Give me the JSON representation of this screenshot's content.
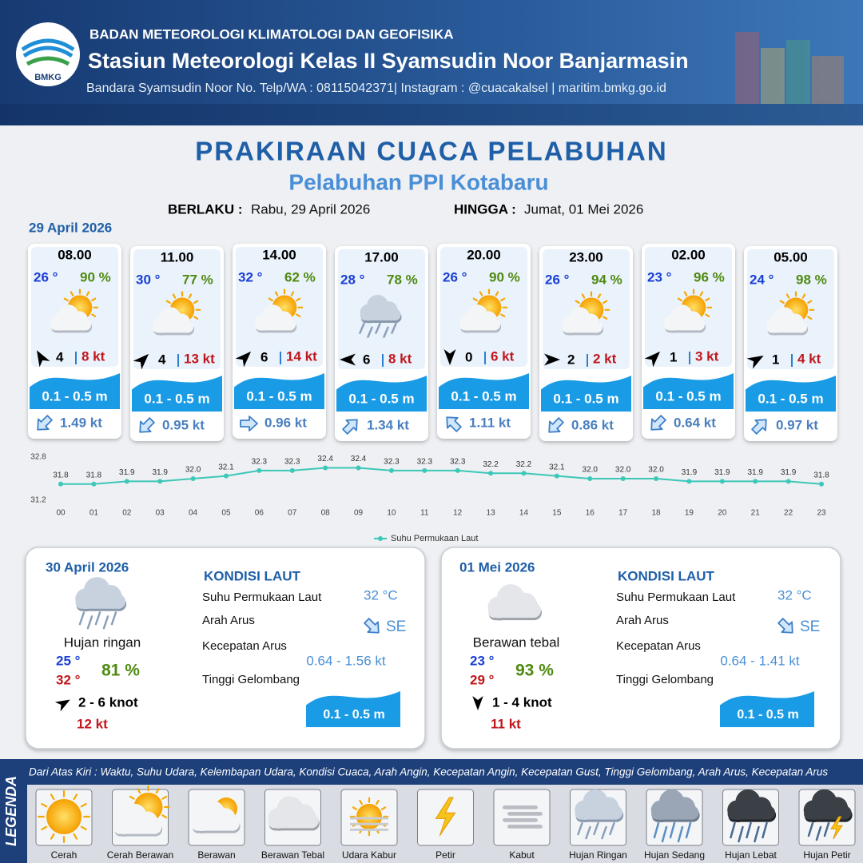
{
  "header": {
    "logo": "BMKG",
    "agency": "BADAN METEOROLOGI KLIMATOLOGI DAN GEOFISIKA",
    "station": "Stasiun Meteorologi Kelas II Syamsudin Noor Banjarmasin",
    "contact": "Bandara Syamsudin Noor No. Telp/WA : 08115042371| Instagram : @cuacakalsel | maritim.bmkg.go.id"
  },
  "title": "PRAKIRAAN CUACA PELABUHAN",
  "subtitle": "Pelabuhan PPI Kotabaru",
  "valid_from_label": "BERLAKU :",
  "valid_from": "Rabu, 29 April 2026",
  "valid_to_label": "HINGGA :",
  "valid_to": "Jumat, 01 Mei 2026",
  "day1_date": "29 April 2026",
  "forecasts": [
    {
      "time": "08.00",
      "temp": "26 °",
      "humidity": "90 %",
      "wind": "4",
      "gust": "8 kt",
      "wave": "0.1 - 0.5 m",
      "current": "1.49 kt"
    },
    {
      "time": "11.00",
      "temp": "30 °",
      "humidity": "77 %",
      "wind": "4",
      "gust": "13 kt",
      "wave": "0.1 - 0.5 m",
      "current": "0.95 kt"
    },
    {
      "time": "14.00",
      "temp": "32 °",
      "humidity": "62 %",
      "wind": "6",
      "gust": "14 kt",
      "wave": "0.1 - 0.5 m",
      "current": "0.96 kt"
    },
    {
      "time": "17.00",
      "temp": "28 °",
      "humidity": "78 %",
      "wind": "6",
      "gust": "8 kt",
      "wave": "0.1 - 0.5 m",
      "current": "1.34 kt"
    },
    {
      "time": "20.00",
      "temp": "26 °",
      "humidity": "90 %",
      "wind": "0",
      "gust": "6 kt",
      "wave": "0.1 - 0.5 m",
      "current": "1.11 kt"
    },
    {
      "time": "23.00",
      "temp": "26 °",
      "humidity": "94 %",
      "wind": "2",
      "gust": "2 kt",
      "wave": "0.1 - 0.5 m",
      "current": "0.86 kt"
    },
    {
      "time": "02.00",
      "temp": "23 °",
      "humidity": "96 %",
      "wind": "1",
      "gust": "3 kt",
      "wave": "0.1 - 0.5 m",
      "current": "0.64 kt"
    },
    {
      "time": "05.00",
      "temp": "24 °",
      "humidity": "98 %",
      "wind": "1",
      "gust": "4 kt",
      "wave": "0.1 - 0.5 m",
      "current": "0.97 kt"
    }
  ],
  "chart_data": {
    "type": "line",
    "categories": [
      "00",
      "01",
      "02",
      "03",
      "04",
      "05",
      "06",
      "07",
      "08",
      "09",
      "10",
      "11",
      "12",
      "13",
      "14",
      "15",
      "16",
      "17",
      "18",
      "19",
      "20",
      "21",
      "22",
      "23"
    ],
    "series": [
      {
        "name": "Suhu Permukaan Laut",
        "color": "#3cc7b8",
        "values": [
          31.8,
          31.8,
          31.9,
          31.9,
          32.0,
          32.1,
          32.3,
          32.3,
          32.4,
          32.4,
          32.3,
          32.3,
          32.3,
          32.2,
          32.2,
          32.1,
          32.0,
          32.0,
          32.0,
          31.9,
          31.9,
          31.9,
          31.9,
          31.8
        ],
        "value_labels": [
          "31.8",
          "31.8",
          "31.9",
          "31.9",
          "32.0",
          "32.1",
          "32.3",
          "32.3",
          "32.4",
          "32.4",
          "32.3",
          "32.3",
          "32.3",
          "32.2",
          "32.2",
          "32.1",
          "32.0",
          "32.0",
          "32.0",
          "31.9",
          "31.9",
          "31.9",
          "31.9",
          "31.8"
        ]
      }
    ],
    "ylim": [
      31.2,
      32.8
    ],
    "yticks": [
      31.2,
      32.8
    ],
    "legend": "bottom"
  },
  "days": [
    {
      "date": "30 April 2026",
      "heading": "KONDISI LAUT",
      "condition": "Hujan ringan",
      "temp_min": "25 °",
      "temp_max": "32 °",
      "humidity": "81 %",
      "wind": "2  - 6 knot",
      "gust": "12 kt",
      "sst_label": "Suhu Permukaan Laut",
      "sst": "32 °C",
      "current_dir_label": "Arah Arus",
      "current_dir": "SE",
      "current_speed_label": "Kecepatan Arus",
      "current_speed": "0.64 - 1.56 kt",
      "wave_label": "Tinggi Gelombang",
      "wave": "0.1 - 0.5 m"
    },
    {
      "date": "01 Mei 2026",
      "heading": "KONDISI LAUT",
      "condition": "Berawan tebal",
      "temp_min": "23 °",
      "temp_max": "29 °",
      "humidity": "93 %",
      "wind": "1 - 4 knot",
      "gust": "11 kt",
      "sst_label": "Suhu Permukaan Laut",
      "sst": "32 °C",
      "current_dir_label": "Arah Arus",
      "current_dir": "SE",
      "current_speed_label": "Kecepatan Arus",
      "current_speed": "0.64 - 1.41 kt",
      "wave_label": "Tinggi Gelombang",
      "wave": "0.1 - 0.5 m"
    }
  ],
  "legend": {
    "title": "LEGENDA",
    "description": "Dari Atas Kiri : Waktu, Suhu Udara, Kelembapan Udara, Kondisi Cuaca, Arah Angin, Kecepatan Angin, Kecepatan Gust, Tinggi Gelombang, Arah Arus, Kecepatan Arus",
    "items": [
      "Cerah",
      "Cerah Berawan",
      "Berawan",
      "Berawan Tebal",
      "Udara Kabur",
      "Petir",
      "Kabut",
      "Hujan Ringan",
      "Hujan Sedang",
      "Hujan Lebat",
      "Hujan Petir"
    ]
  }
}
